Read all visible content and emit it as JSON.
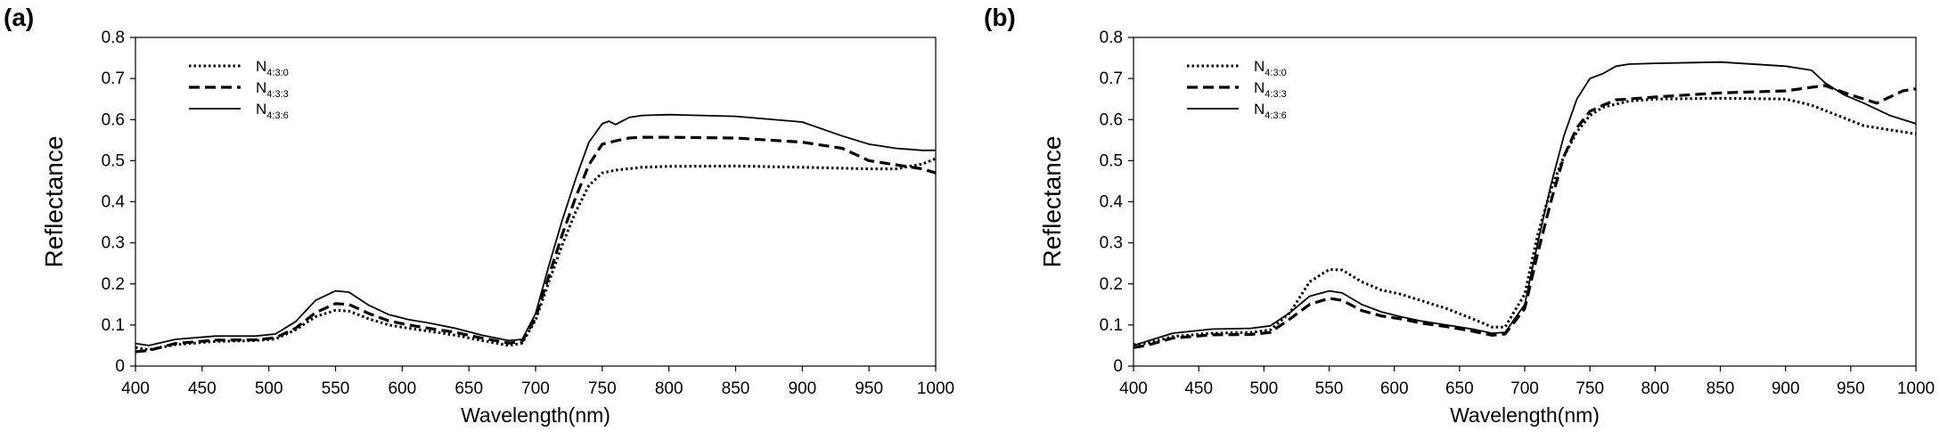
{
  "chart_data": [
    {
      "type": "line",
      "panel_label": "(a)",
      "xlabel": "Wavelength(nm)",
      "ylabel": "Reflectance",
      "xlim": [
        400,
        1000
      ],
      "ylim": [
        0,
        0.8
      ],
      "xticks": [
        "400",
        "450",
        "500",
        "550",
        "600",
        "650",
        "700",
        "750",
        "800",
        "850",
        "900",
        "950",
        "1000"
      ],
      "yticks": [
        "0",
        "0.1",
        "0.2",
        "0.3",
        "0.4",
        "0.5",
        "0.6",
        "0.7",
        "0.8"
      ],
      "grid": false,
      "legend_position": "top-left",
      "series": [
        {
          "name": "N",
          "sub": "4:3:0",
          "style": "dotted",
          "x": [
            400,
            410,
            430,
            460,
            490,
            505,
            520,
            535,
            550,
            560,
            575,
            590,
            605,
            620,
            640,
            660,
            680,
            690,
            700,
            710,
            720,
            730,
            740,
            750,
            760,
            780,
            800,
            850,
            900,
            950,
            970,
            990,
            1000
          ],
          "y": [
            0.045,
            0.04,
            0.052,
            0.06,
            0.062,
            0.066,
            0.088,
            0.12,
            0.136,
            0.134,
            0.115,
            0.1,
            0.092,
            0.085,
            0.075,
            0.062,
            0.05,
            0.056,
            0.112,
            0.205,
            0.295,
            0.375,
            0.44,
            0.47,
            0.477,
            0.484,
            0.486,
            0.487,
            0.484,
            0.48,
            0.48,
            0.492,
            0.505
          ]
        },
        {
          "name": "N",
          "sub": "4:3:3",
          "style": "dashed",
          "x": [
            400,
            410,
            430,
            460,
            490,
            505,
            520,
            535,
            550,
            560,
            575,
            590,
            605,
            620,
            640,
            660,
            680,
            690,
            700,
            710,
            720,
            730,
            740,
            750,
            760,
            770,
            780,
            800,
            850,
            900,
            930,
            950,
            970,
            990,
            1000
          ],
          "y": [
            0.035,
            0.038,
            0.055,
            0.063,
            0.064,
            0.069,
            0.092,
            0.13,
            0.152,
            0.15,
            0.128,
            0.11,
            0.1,
            0.092,
            0.082,
            0.068,
            0.056,
            0.06,
            0.118,
            0.22,
            0.32,
            0.41,
            0.49,
            0.54,
            0.548,
            0.555,
            0.557,
            0.557,
            0.555,
            0.545,
            0.53,
            0.5,
            0.49,
            0.48,
            0.47
          ]
        },
        {
          "name": "N",
          "sub": "4:3:6",
          "style": "solid",
          "x": [
            400,
            410,
            430,
            460,
            490,
            505,
            520,
            535,
            550,
            560,
            575,
            590,
            605,
            620,
            640,
            660,
            680,
            690,
            700,
            710,
            720,
            730,
            740,
            750,
            755,
            760,
            770,
            780,
            800,
            850,
            900,
            930,
            950,
            970,
            990,
            1000
          ],
          "y": [
            0.055,
            0.05,
            0.065,
            0.073,
            0.073,
            0.078,
            0.108,
            0.16,
            0.183,
            0.18,
            0.148,
            0.125,
            0.113,
            0.105,
            0.092,
            0.075,
            0.062,
            0.065,
            0.128,
            0.245,
            0.355,
            0.455,
            0.545,
            0.59,
            0.596,
            0.588,
            0.605,
            0.61,
            0.612,
            0.608,
            0.594,
            0.56,
            0.54,
            0.53,
            0.525,
            0.525
          ]
        }
      ]
    },
    {
      "type": "line",
      "panel_label": "(b)",
      "xlabel": "Wavelength(nm)",
      "ylabel": "Reflectance",
      "xlim": [
        400,
        1000
      ],
      "ylim": [
        0,
        0.8
      ],
      "xticks": [
        "400",
        "450",
        "500",
        "550",
        "600",
        "650",
        "700",
        "750",
        "800",
        "850",
        "900",
        "950",
        "1000"
      ],
      "yticks": [
        "0",
        "0.1",
        "0.2",
        "0.3",
        "0.4",
        "0.5",
        "0.6",
        "0.7",
        "0.8"
      ],
      "grid": false,
      "legend_position": "top-left",
      "series": [
        {
          "name": "N",
          "sub": "4:3:0",
          "style": "dotted",
          "x": [
            400,
            410,
            430,
            460,
            490,
            505,
            520,
            535,
            550,
            560,
            575,
            590,
            605,
            620,
            640,
            660,
            675,
            685,
            700,
            710,
            720,
            730,
            740,
            750,
            760,
            780,
            800,
            850,
            900,
            920,
            940,
            960,
            980,
            1000
          ],
          "y": [
            0.052,
            0.055,
            0.072,
            0.08,
            0.082,
            0.088,
            0.13,
            0.205,
            0.235,
            0.234,
            0.205,
            0.185,
            0.175,
            0.16,
            0.14,
            0.115,
            0.095,
            0.095,
            0.175,
            0.32,
            0.43,
            0.51,
            0.57,
            0.61,
            0.63,
            0.645,
            0.65,
            0.652,
            0.65,
            0.635,
            0.61,
            0.585,
            0.575,
            0.565
          ]
        },
        {
          "name": "N",
          "sub": "4:3:3",
          "style": "dashed",
          "x": [
            400,
            410,
            430,
            460,
            490,
            505,
            520,
            535,
            550,
            560,
            575,
            590,
            605,
            620,
            640,
            660,
            675,
            685,
            700,
            710,
            720,
            730,
            740,
            750,
            760,
            770,
            780,
            800,
            850,
            900,
            930,
            950,
            970,
            990,
            1000
          ],
          "y": [
            0.045,
            0.05,
            0.068,
            0.076,
            0.077,
            0.082,
            0.115,
            0.15,
            0.165,
            0.16,
            0.135,
            0.122,
            0.115,
            0.105,
            0.096,
            0.085,
            0.075,
            0.078,
            0.14,
            0.275,
            0.4,
            0.51,
            0.58,
            0.62,
            0.635,
            0.648,
            0.65,
            0.655,
            0.665,
            0.67,
            0.683,
            0.66,
            0.64,
            0.67,
            0.675
          ]
        },
        {
          "name": "N",
          "sub": "4:3:6",
          "style": "solid",
          "x": [
            400,
            410,
            430,
            460,
            490,
            505,
            520,
            535,
            550,
            560,
            575,
            590,
            605,
            620,
            640,
            660,
            675,
            685,
            700,
            710,
            720,
            730,
            740,
            750,
            760,
            770,
            780,
            800,
            850,
            900,
            920,
            930,
            945,
            960,
            980,
            1000
          ],
          "y": [
            0.05,
            0.06,
            0.08,
            0.09,
            0.092,
            0.098,
            0.13,
            0.17,
            0.183,
            0.178,
            0.15,
            0.132,
            0.12,
            0.11,
            0.1,
            0.09,
            0.08,
            0.082,
            0.15,
            0.3,
            0.44,
            0.56,
            0.65,
            0.7,
            0.712,
            0.73,
            0.735,
            0.737,
            0.74,
            0.73,
            0.72,
            0.69,
            0.66,
            0.64,
            0.61,
            0.59
          ]
        }
      ]
    }
  ]
}
